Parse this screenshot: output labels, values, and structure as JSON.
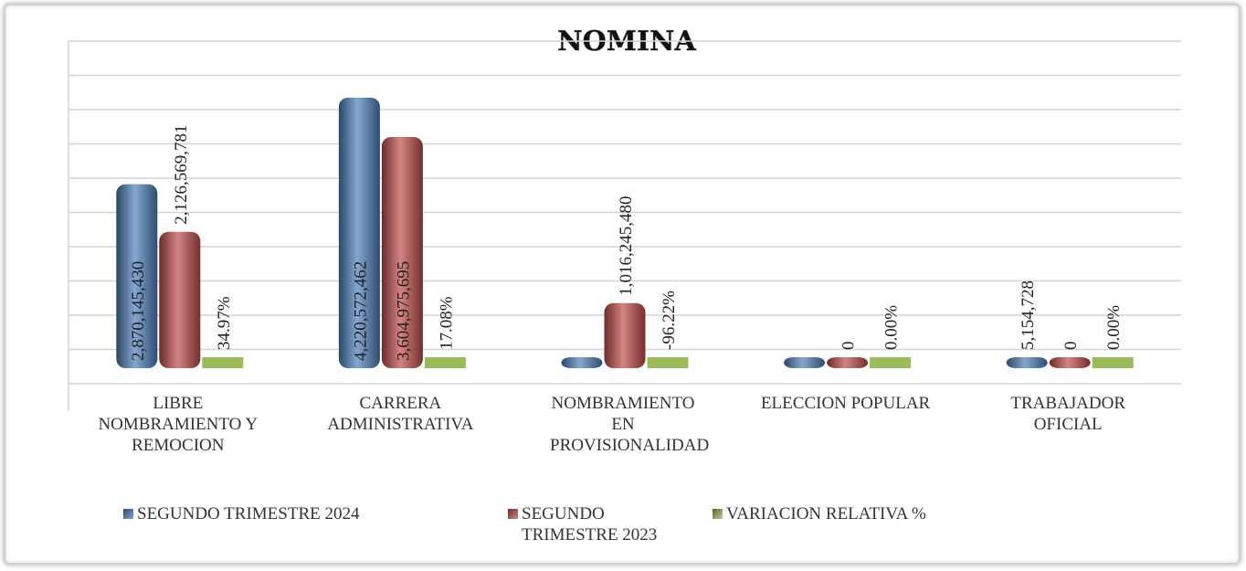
{
  "chart_data": {
    "type": "bar",
    "title": "NOMINA",
    "categories": [
      "LIBRE NOMBRAMIENTO Y REMOCION",
      "CARRERA ADMINISTRATIVA",
      "NOMBRAMIENTO EN PROVISIONALIDAD",
      "ELECCION POPULAR",
      "TRABAJADOR OFICIAL"
    ],
    "series": [
      {
        "name": "SEGUNDO TRIMESTRE 2024",
        "color": "#4f81bd",
        "values": [
          2870145430,
          4220572462,
          38414000,
          20000000,
          5154728
        ],
        "value_labels": [
          "2,870,145,430",
          "4,220,572,462",
          null,
          null,
          "5,154,728"
        ]
      },
      {
        "name": "SEGUNDO TRIMESTRE 2023",
        "color": "#c0504d",
        "values": [
          2126569781,
          3604975695,
          1016245480,
          0,
          0
        ],
        "value_labels": [
          "2,126,569,781",
          "3,604,975,695",
          "1,016,245,480",
          "0",
          "0"
        ]
      },
      {
        "name": "VARIACION RELATIVA %",
        "color": "#9bbb59",
        "values": [
          34.97,
          17.08,
          -96.22,
          0,
          0
        ],
        "value_labels": [
          "34.97%",
          "17.08%",
          "-96.22%",
          "0.00%",
          "0.00%"
        ]
      }
    ],
    "ylim": [
      0,
      5000000000
    ],
    "yticks": [
      0,
      500000000,
      1000000000,
      1500000000,
      2000000000,
      2500000000,
      3000000000,
      3500000000,
      4000000000,
      4500000000,
      5000000000
    ],
    "grid": true,
    "legend": "bottom"
  }
}
